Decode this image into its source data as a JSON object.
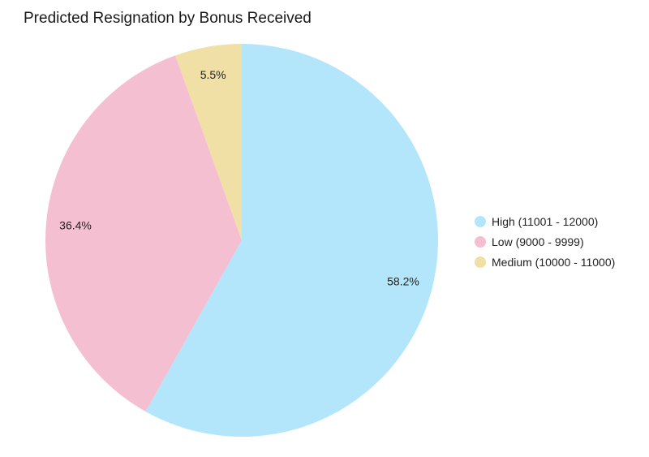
{
  "chart_data": {
    "type": "pie",
    "title": "Predicted Resignation by Bonus Received",
    "slices": [
      {
        "label": "High (11001 - 12000)",
        "value": 58.2,
        "display": "58.2%",
        "color": "#b3e6fb"
      },
      {
        "label": "Low (9000 - 9999)",
        "value": 36.4,
        "display": "36.4%",
        "color": "#f5bfd2"
      },
      {
        "label": "Medium (10000 - 11000)",
        "value": 5.5,
        "display": "5.5%",
        "color": "#f0e0a6"
      }
    ],
    "legend_position": "right"
  }
}
